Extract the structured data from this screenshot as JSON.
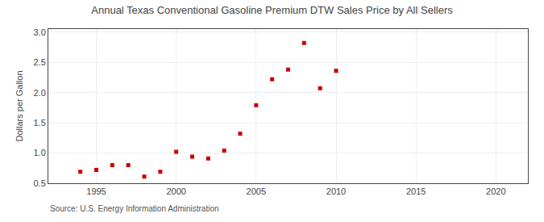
{
  "chart_data": {
    "type": "scatter",
    "title": "Annual Texas Conventional Gasoline Premium DTW Sales Price by All Sellers",
    "ylabel": "Dollars per Gallon",
    "annotations": [
      "Source: U.S. Energy Information Administration"
    ],
    "x": [
      1994,
      1995,
      1996,
      1997,
      1998,
      1999,
      2000,
      2001,
      2002,
      2003,
      2004,
      2005,
      2006,
      2007,
      2008,
      2009,
      2010
    ],
    "values": [
      0.69,
      0.72,
      0.8,
      0.8,
      0.61,
      0.69,
      1.02,
      0.94,
      0.91,
      1.04,
      1.32,
      1.79,
      2.22,
      2.38,
      2.82,
      2.07,
      2.36
    ],
    "color": "#cc0000",
    "marker": "square",
    "xlim": [
      1992,
      2022
    ],
    "xticks": [
      1995,
      2000,
      2005,
      2010,
      2015,
      2020
    ],
    "ylim": [
      0.5,
      3.05
    ],
    "yticks": [
      0.5,
      {
        "value": 1.0,
        "label": "1.0"
      },
      1.5,
      {
        "value": 2.0,
        "label": "2.0"
      },
      2.5,
      {
        "value": 3.0,
        "label": "3.0"
      }
    ],
    "grid": true
  }
}
